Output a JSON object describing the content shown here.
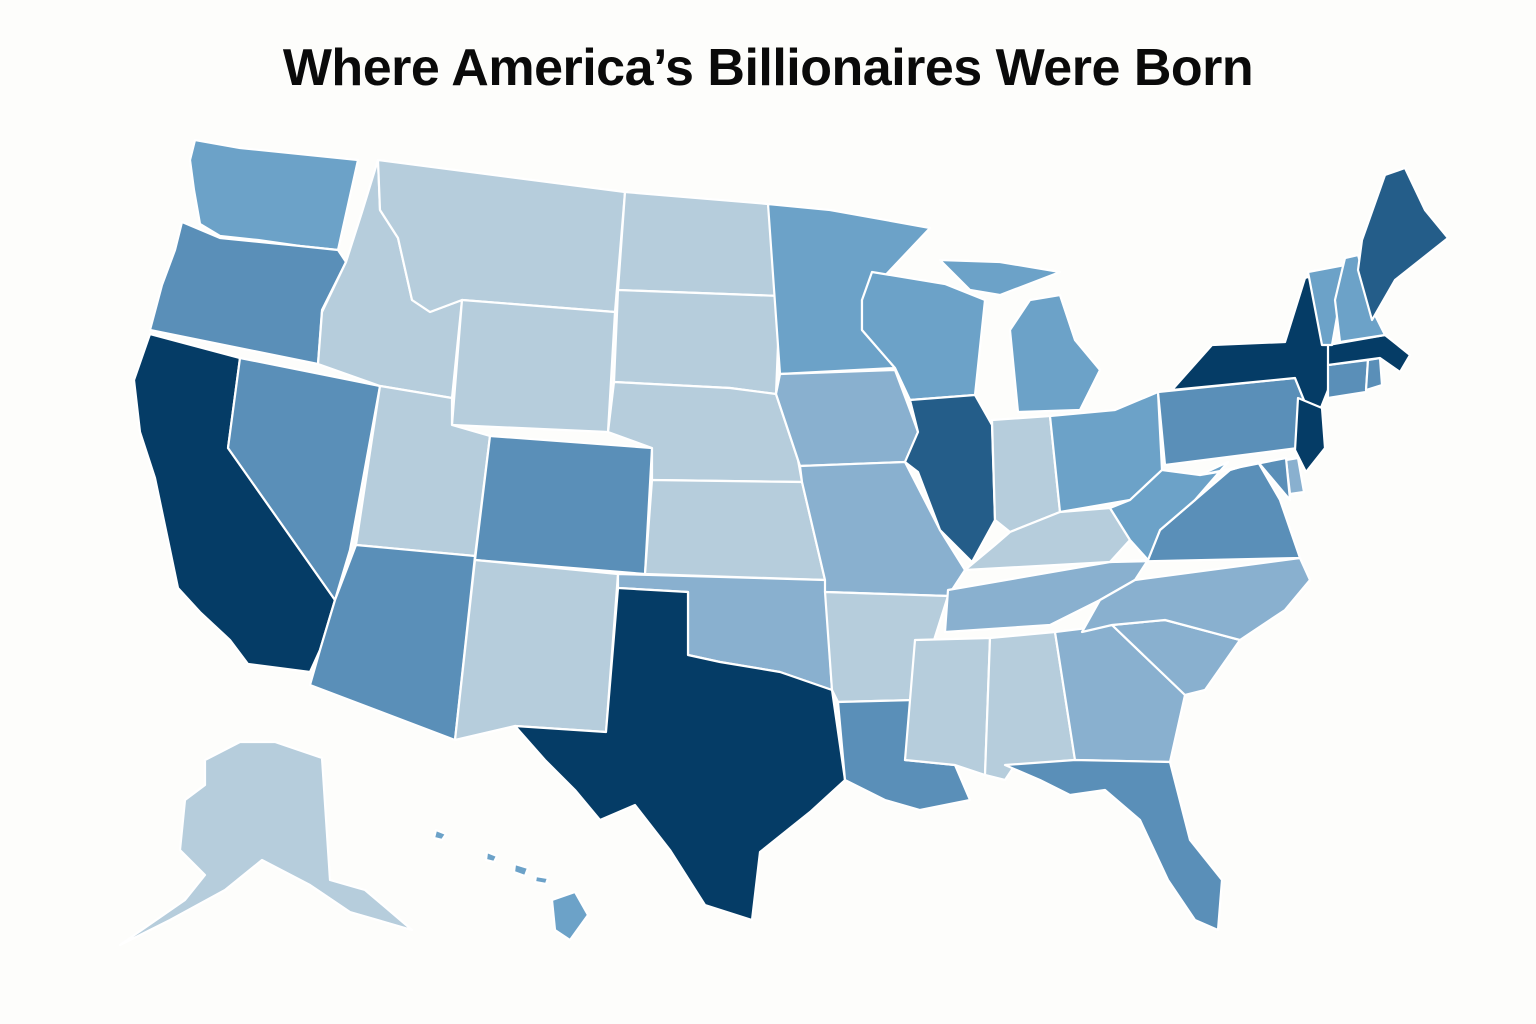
{
  "title": "Where America’s Billionaires Were Born",
  "palette": {
    "c1": "#b6cddc",
    "c2": "#89b0cf",
    "c3": "#6ca2c8",
    "c4": "#5a8fb8",
    "c5": "#245d89",
    "c6": "#053c66"
  },
  "states": [
    {
      "code": "WA",
      "c": "c3"
    },
    {
      "code": "OR",
      "c": "c4"
    },
    {
      "code": "CA",
      "c": "c6"
    },
    {
      "code": "NV",
      "c": "c4"
    },
    {
      "code": "ID",
      "c": "c1"
    },
    {
      "code": "MT",
      "c": "c1"
    },
    {
      "code": "WY",
      "c": "c1"
    },
    {
      "code": "UT",
      "c": "c1"
    },
    {
      "code": "AZ",
      "c": "c4"
    },
    {
      "code": "CO",
      "c": "c4"
    },
    {
      "code": "NM",
      "c": "c1"
    },
    {
      "code": "ND",
      "c": "c1"
    },
    {
      "code": "SD",
      "c": "c1"
    },
    {
      "code": "NE",
      "c": "c1"
    },
    {
      "code": "KS",
      "c": "c1"
    },
    {
      "code": "OK",
      "c": "c2"
    },
    {
      "code": "TX",
      "c": "c6"
    },
    {
      "code": "MN",
      "c": "c3"
    },
    {
      "code": "IA",
      "c": "c2"
    },
    {
      "code": "MO",
      "c": "c2"
    },
    {
      "code": "AR",
      "c": "c1"
    },
    {
      "code": "LA",
      "c": "c4"
    },
    {
      "code": "WI",
      "c": "c3"
    },
    {
      "code": "IL",
      "c": "c5"
    },
    {
      "code": "MI",
      "c": "c3"
    },
    {
      "code": "IN",
      "c": "c1"
    },
    {
      "code": "OH",
      "c": "c3"
    },
    {
      "code": "KY",
      "c": "c1"
    },
    {
      "code": "TN",
      "c": "c2"
    },
    {
      "code": "MS",
      "c": "c1"
    },
    {
      "code": "AL",
      "c": "c1"
    },
    {
      "code": "GA",
      "c": "c2"
    },
    {
      "code": "FL",
      "c": "c4"
    },
    {
      "code": "SC",
      "c": "c2"
    },
    {
      "code": "NC",
      "c": "c2"
    },
    {
      "code": "VA",
      "c": "c4"
    },
    {
      "code": "WV",
      "c": "c3"
    },
    {
      "code": "PA",
      "c": "c4"
    },
    {
      "code": "NY",
      "c": "c6"
    },
    {
      "code": "NJ",
      "c": "c6"
    },
    {
      "code": "DE",
      "c": "c2"
    },
    {
      "code": "MD",
      "c": "c4"
    },
    {
      "code": "CT",
      "c": "c4"
    },
    {
      "code": "RI",
      "c": "c4"
    },
    {
      "code": "MA",
      "c": "c6"
    },
    {
      "code": "VT",
      "c": "c3"
    },
    {
      "code": "NH",
      "c": "c3"
    },
    {
      "code": "ME",
      "c": "c5"
    },
    {
      "code": "AK",
      "c": "c1"
    },
    {
      "code": "HI",
      "c": "c3"
    }
  ]
}
